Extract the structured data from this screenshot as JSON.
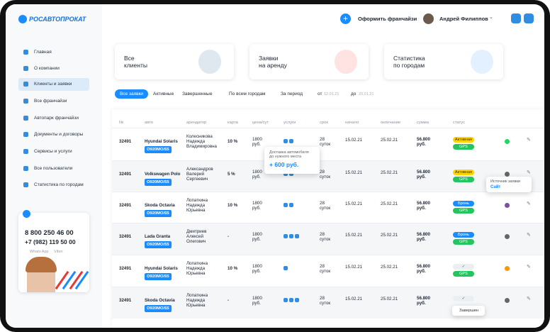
{
  "brand": "РОСАВТОПРОКАТ",
  "menu": [
    "Главная",
    "О компании",
    "Клиенты и заявки",
    "Все франчайзи",
    "Автопарк франчайзи",
    "Документы и договоры",
    "Сервисы и услуги",
    "Все пользователи",
    "Статистика по городам"
  ],
  "contacts": {
    "phone1": "8 800 250 46 00",
    "phone2": "+7 (982) 119 50 00",
    "whatsapp": "Whats App",
    "viber": "Viber"
  },
  "header": {
    "franchise_button": "Оформить франчайзи",
    "user_name": "Андрей Филиппов"
  },
  "cards": [
    "Все\nклиенты",
    "Заявки\nна аренду",
    "Статистика\nпо городам"
  ],
  "filters": {
    "tabs": [
      "Все заявки",
      "Активные",
      "Завершенные"
    ],
    "city": "По всем городам",
    "period": "За период",
    "from_label": "от",
    "from_date": "12.01.21",
    "to_label": "до",
    "to_date": "20.01.21"
  },
  "table": {
    "columns": [
      "№",
      "авто",
      "арендатор",
      "карта",
      "цена/сут",
      "услуги",
      "срок",
      "начало",
      "окончание",
      "сумма",
      "статус"
    ],
    "rows": [
      {
        "number": "32491",
        "car": "Hyundai Solaris",
        "plate": "O920MO/55",
        "tenant": "Колесникова\nНадежда\nВладимировна",
        "card": "10 %",
        "price": "1800\nруб.",
        "term": "28\nсуток",
        "start": "15.02.21",
        "end": "25.02.21",
        "sum": "56.800\nруб.",
        "status": "Активная",
        "gps": "GPS"
      },
      {
        "number": "32491",
        "car": "Volkswagen Polo",
        "plate": "O920MO/55",
        "tenant": "Александров\nВалерий\nСергеевич",
        "card": "5 %",
        "price": "1800\nруб.",
        "term": "28\nсуток",
        "start": "15.02.21",
        "end": "25.02.21",
        "sum": "56.800\nруб.",
        "status": "Активная",
        "gps": "GPS"
      },
      {
        "number": "32491",
        "car": "Skoda Octavia",
        "plate": "O920MO/55",
        "tenant": "Лопаткина\nНадежда\nЮрьевна",
        "card": "10 %",
        "price": "1800\nруб.",
        "term": "28\nсуток",
        "start": "15.02.21",
        "end": "25.02.21",
        "sum": "56.800\nруб.",
        "status": "Бронь",
        "gps": "GPS"
      },
      {
        "number": "32491",
        "car": "Lada Granta",
        "plate": "O920MO/55",
        "tenant": "Дмитриев\nАлексей\nОлегович",
        "card": "-",
        "price": "1800\nруб.",
        "term": "28\nсуток",
        "start": "15.02.21",
        "end": "25.02.21",
        "sum": "56.800\nруб.",
        "status": "Бронь",
        "gps": "GPS"
      },
      {
        "number": "32491",
        "car": "Hyundai Solaris",
        "plate": "O920MO/55",
        "tenant": "Лопаткина\nНадежда\nЮрьевна",
        "card": "10 %",
        "price": "1800\nруб.",
        "term": "28\nсуток",
        "start": "15.02.21",
        "end": "25.02.21",
        "sum": "56.800\nруб.",
        "gps": "GPS"
      },
      {
        "number": "32491",
        "car": "Skoda Octavia",
        "plate": "O920MO/55",
        "tenant": "Лопаткина\nНадежда\nЮрьевна",
        "card": "-",
        "price": "1800\nруб.",
        "term": "28\nсуток",
        "start": "15.02.21",
        "end": "25.02.21",
        "sum": "56.800\nруб."
      }
    ]
  },
  "tooltips": {
    "service_title": "Доставка автомобиля\nдо нужного места",
    "service_price": "+ 600 руб.",
    "source_title": "Источник заявки",
    "source_value": "Сайт",
    "status_hint": "Завершен"
  }
}
